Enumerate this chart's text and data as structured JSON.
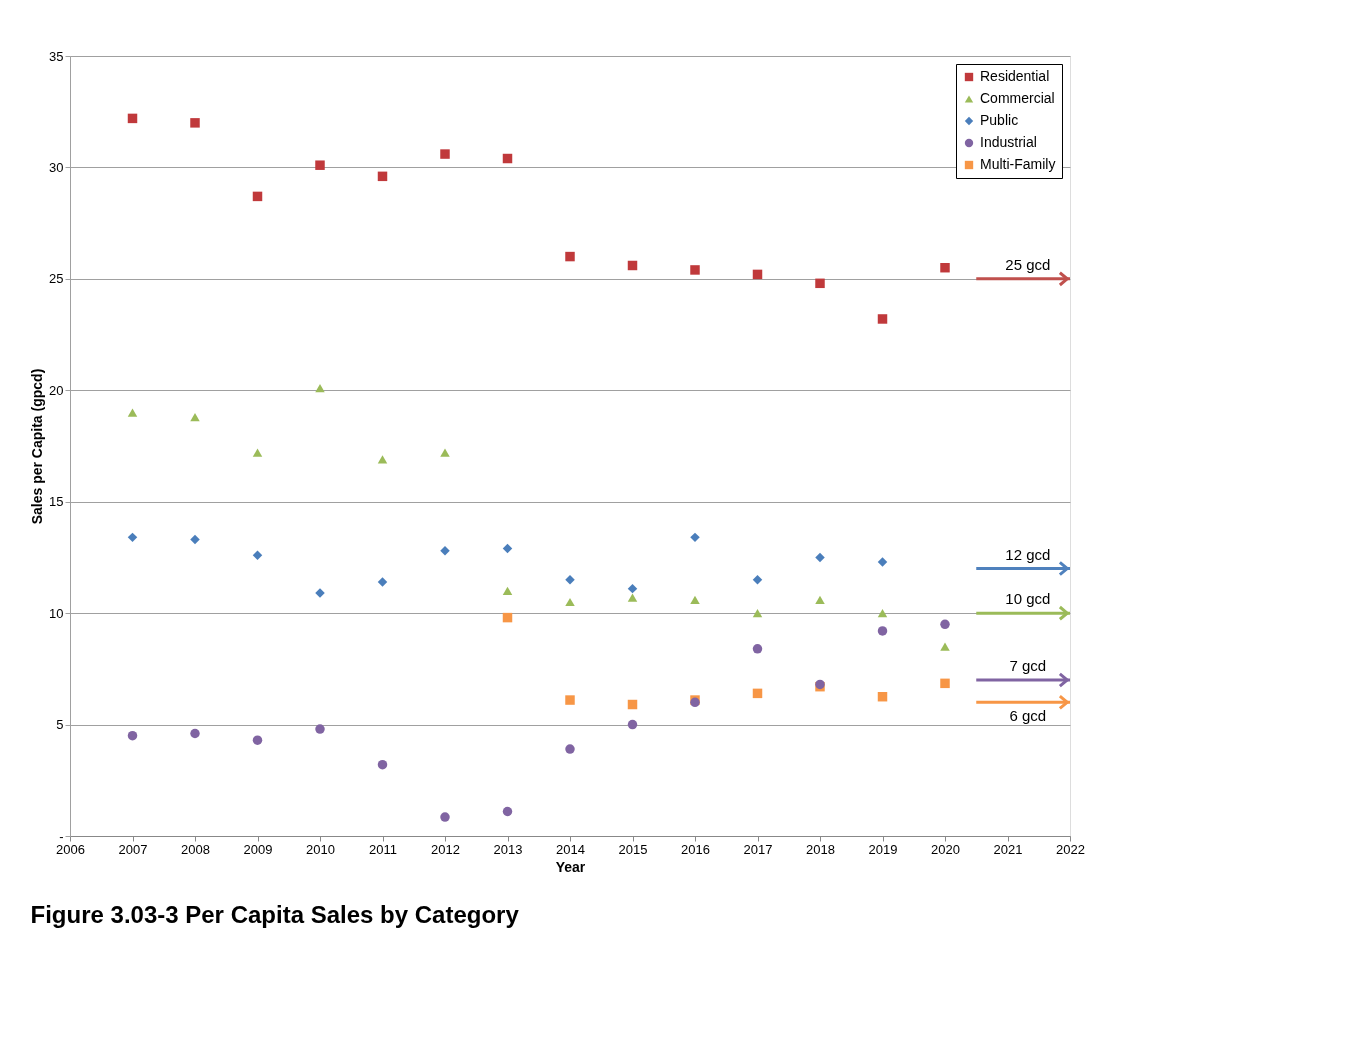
{
  "chart_data": {
    "type": "scatter",
    "title": "Figure 3.03-3  Per Capita Sales by Category",
    "xlabel": "Year",
    "ylabel": "Sales per Capita (gpcd)",
    "x": [
      2007,
      2008,
      2009,
      2010,
      2011,
      2012,
      2013,
      2014,
      2015,
      2016,
      2017,
      2018,
      2019,
      2020
    ],
    "series": [
      {
        "name": "Residential",
        "color": "#c0393b",
        "marker": "square",
        "values": [
          32.2,
          32.0,
          28.7,
          30.1,
          29.6,
          30.6,
          30.4,
          26.0,
          25.6,
          25.4,
          25.2,
          24.8,
          23.2,
          25.5
        ]
      },
      {
        "name": "Commercial",
        "color": "#9bbb59",
        "marker": "triangle",
        "values": [
          19.0,
          18.8,
          17.2,
          20.1,
          16.9,
          17.2,
          11.0,
          10.5,
          10.7,
          10.6,
          10.0,
          10.6,
          10.0,
          8.5
        ]
      },
      {
        "name": "Public",
        "color": "#4a7ebb",
        "marker": "diamond",
        "values": [
          13.4,
          13.3,
          12.6,
          10.9,
          11.4,
          12.8,
          12.9,
          11.5,
          11.1,
          13.4,
          11.5,
          12.5,
          12.3,
          null
        ]
      },
      {
        "name": "Industrial",
        "color": "#8064a2",
        "marker": "circle",
        "values": [
          4.5,
          4.6,
          4.3,
          4.8,
          3.2,
          0.85,
          1.1,
          3.9,
          5.0,
          6.0,
          8.4,
          6.8,
          9.2,
          9.5
        ]
      },
      {
        "name": "Multi-Family",
        "color": "#f79646",
        "marker": "square",
        "values": [
          null,
          null,
          null,
          null,
          null,
          null,
          9.8,
          6.1,
          5.9,
          6.1,
          6.4,
          6.7,
          6.25,
          6.85
        ]
      }
    ],
    "xlim": [
      2006,
      2022
    ],
    "xticks": [
      2006,
      2007,
      2008,
      2009,
      2010,
      2011,
      2012,
      2013,
      2014,
      2015,
      2016,
      2017,
      2018,
      2019,
      2020,
      2021,
      2022
    ],
    "ylim": [
      0,
      35
    ],
    "yticks": [
      {
        "value": 0,
        "label": "-"
      },
      5,
      10,
      15,
      20,
      25,
      30,
      35
    ],
    "grid": "y",
    "legend": "top right",
    "ref_lines": [
      {
        "axis": "y",
        "value": 25,
        "label": "25 gcd",
        "color": "#c0504d"
      },
      {
        "axis": "y",
        "value": 12,
        "label": "12 gcd",
        "color": "#4f81bd"
      },
      {
        "axis": "y",
        "value": 10,
        "label": "10 gcd",
        "color": "#9bbb59"
      },
      {
        "axis": "y",
        "value": 7,
        "label": "7 gcd",
        "color": "#8064a2"
      },
      {
        "axis": "y",
        "value": 6,
        "label": "6 gcd",
        "color": "#f79646"
      }
    ]
  }
}
